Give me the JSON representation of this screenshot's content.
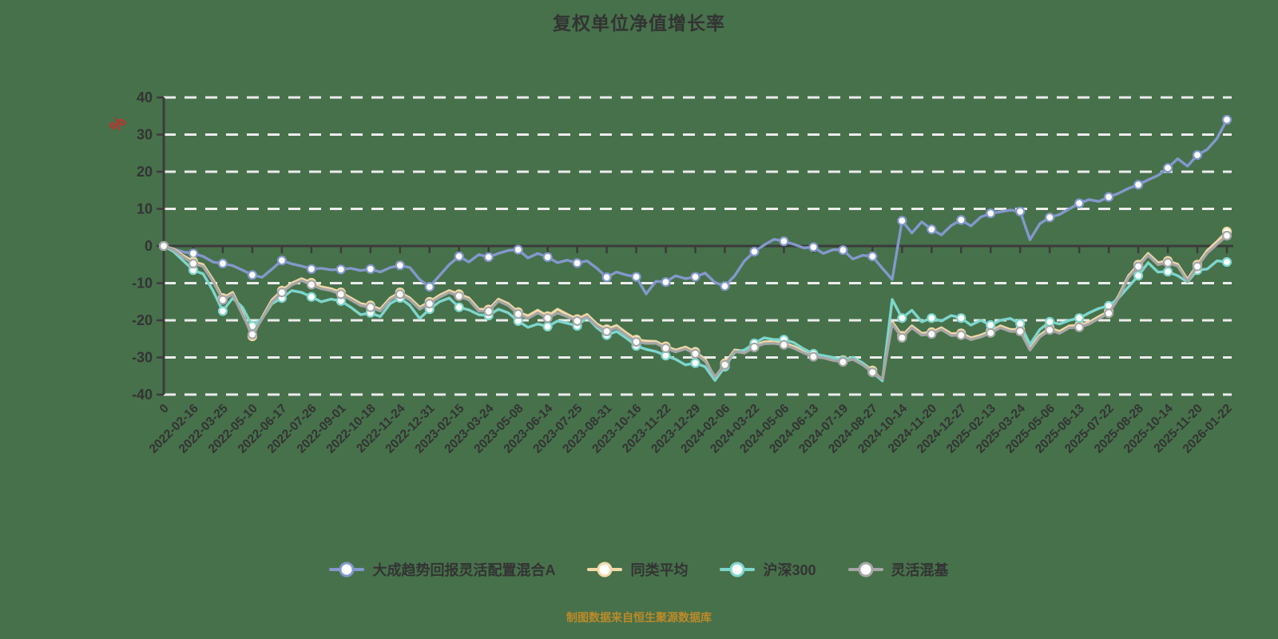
{
  "page": {
    "background_color": "#47714b"
  },
  "chart_data": {
    "type": "line",
    "title": "复权单位净值增长率",
    "source_note": "制图数据来自恒生聚源数据库",
    "y_unit_label": "%",
    "y_unit_color": "#cc2b2b",
    "grid": "horizontal dashed white lines",
    "legend_position": "bottom",
    "ylim": [
      -40,
      40
    ],
    "y_ticks": [
      40,
      30,
      20,
      10,
      0,
      -10,
      -20,
      -30,
      -40
    ],
    "x_tick_labels": [
      "0",
      "2022-02-16",
      "2022-03-25",
      "2022-05-10",
      "2022-06-17",
      "2022-07-26",
      "2022-09-01",
      "2022-10-18",
      "2022-11-24",
      "2022-12-31",
      "2023-02-15",
      "2023-03-24",
      "2023-05-08",
      "2023-06-14",
      "2023-07-25",
      "2023-08-31",
      "2023-10-16",
      "2023-11-22",
      "2023-12-29",
      "2024-02-06",
      "2024-03-22",
      "2024-05-06",
      "2024-06-13",
      "2024-07-19",
      "2024-08-27",
      "2024-10-14",
      "2024-11-20",
      "2024-12-27",
      "2025-02-13",
      "2025-03-24",
      "2025-05-06",
      "2025-06-13",
      "2025-07-22",
      "2025-08-28",
      "2025-10-14",
      "2025-11-20",
      "2026-01-22"
    ],
    "points_per_interval": 3,
    "marker_every": 3,
    "axis_color": "#3b3b3b",
    "gridline_color": "#ececec",
    "label_color": "#333333",
    "series": [
      {
        "name": "大成趋势回报灵活配置混合A",
        "color": "#8398cb",
        "values": [
          0,
          -0.8,
          -1.6,
          -2,
          -2.8,
          -4.3,
          -4.7,
          -5.3,
          -6.5,
          -7.8,
          -8.4,
          -6.2,
          -3.9,
          -4.8,
          -5.4,
          -6.2,
          -6,
          -6.4,
          -6.3,
          -6,
          -6.6,
          -6.2,
          -7,
          -5.8,
          -5.2,
          -5.8,
          -9,
          -11,
          -8,
          -5,
          -2.8,
          -4.3,
          -2.3,
          -3,
          -2,
          -1.2,
          -1,
          -3.2,
          -2,
          -3,
          -4.5,
          -3.8,
          -4.6,
          -4,
          -6,
          -8.4,
          -7,
          -7.8,
          -8.3,
          -12.9,
          -9.5,
          -9.7,
          -8,
          -8.8,
          -8.3,
          -7.3,
          -9.8,
          -10.8,
          -8,
          -4,
          -1.5,
          0.3,
          1.8,
          1.3,
          0.5,
          -0.5,
          -0.3,
          -2,
          -1,
          -1.1,
          -3.5,
          -2.5,
          -2.8,
          -6,
          -9,
          6.8,
          3.5,
          6.5,
          4.5,
          3,
          5.5,
          7,
          5.4,
          7.8,
          8.8,
          9.2,
          9.7,
          9.3,
          1.7,
          6,
          7.7,
          8.5,
          10,
          11.5,
          12.5,
          12,
          13.2,
          14.2,
          15.5,
          16.5,
          17.8,
          19,
          21,
          23.5,
          21.5,
          24.5,
          26,
          29,
          34
        ]
      },
      {
        "name": "同类平均",
        "color": "#f2d9a7",
        "values": [
          0,
          -0.8,
          -2.6,
          -4.2,
          -5,
          -9,
          -14,
          -12.5,
          -18,
          -24.3,
          -19.2,
          -14.5,
          -12,
          -10,
          -8.8,
          -9.9,
          -11,
          -11.5,
          -12.5,
          -14,
          -15.5,
          -16,
          -17,
          -14,
          -12.5,
          -14,
          -16.5,
          -15,
          -13.3,
          -12,
          -13,
          -14,
          -17,
          -17.1,
          -14.3,
          -15.5,
          -17.8,
          -18.8,
          -17.3,
          -18.9,
          -17,
          -18.4,
          -19.7,
          -18.4,
          -21,
          -22.4,
          -21.4,
          -23.4,
          -25.2,
          -25.6,
          -25.7,
          -27,
          -28,
          -27.2,
          -28.5,
          -30.5,
          -35.6,
          -31.6,
          -28,
          -28.3,
          -26.8,
          -25.8,
          -25.7,
          -26.1,
          -27,
          -28.3,
          -29.3,
          -29.6,
          -30.3,
          -30.7,
          -30,
          -31.5,
          -33.5,
          -36.1,
          -20.4,
          -24.2,
          -21.5,
          -23.5,
          -23.2,
          -22,
          -23.6,
          -23.5,
          -24.7,
          -24,
          -22.9,
          -21.5,
          -22.5,
          -22.5,
          -27.4,
          -24,
          -22.1,
          -23,
          -21.5,
          -21.4,
          -20.5,
          -19,
          -17.6,
          -13.5,
          -8,
          -5,
          -2,
          -4.5,
          -4,
          -4.9,
          -9,
          -5,
          -1.2,
          1.2,
          3.9
        ]
      },
      {
        "name": "沪深300",
        "color": "#7dd6cd",
        "values": [
          0,
          -1.5,
          -4,
          -6.5,
          -7.5,
          -12,
          -17.5,
          -14,
          -16.5,
          -21.5,
          -19.5,
          -15.5,
          -14,
          -12,
          -12.5,
          -13.7,
          -15,
          -14.3,
          -14.8,
          -16.5,
          -18.5,
          -18,
          -19,
          -15.5,
          -14,
          -16,
          -19.5,
          -17,
          -15,
          -14,
          -16.5,
          -17.2,
          -18.5,
          -18.7,
          -17,
          -18,
          -20.2,
          -21.9,
          -21,
          -21.7,
          -20.2,
          -20.8,
          -21.5,
          -19.2,
          -22,
          -24,
          -23,
          -24.8,
          -26.9,
          -27.8,
          -28.4,
          -29.5,
          -30.5,
          -32,
          -31.5,
          -32.5,
          -36.2,
          -32.5,
          -28.6,
          -28,
          -26.2,
          -24.7,
          -25.2,
          -25.2,
          -26,
          -27.7,
          -29,
          -29.5,
          -30,
          -30.9,
          -30,
          -31.5,
          -34,
          -36.3,
          -14.4,
          -19.4,
          -17.3,
          -20.4,
          -19.4,
          -20.2,
          -18.7,
          -19.4,
          -21.3,
          -20,
          -21.3,
          -20,
          -19.5,
          -20.9,
          -26.5,
          -22.5,
          -20.4,
          -21,
          -20,
          -19.4,
          -18,
          -16.8,
          -16.1,
          -14,
          -11,
          -8,
          -4.5,
          -7,
          -6.9,
          -8,
          -9.7,
          -6.5,
          -6.2,
          -4,
          -4.3
        ]
      },
      {
        "name": "灵活混基",
        "color": "#a6a6a6",
        "values": [
          0,
          -1,
          -3,
          -4.7,
          -5.5,
          -9.5,
          -14.5,
          -13,
          -18.5,
          -23.8,
          -19.6,
          -15,
          -12.5,
          -10.5,
          -9.3,
          -10.4,
          -11.5,
          -12,
          -13,
          -14.5,
          -16,
          -16.5,
          -17.5,
          -14.5,
          -13,
          -14.5,
          -17,
          -15.5,
          -13.8,
          -12.5,
          -13.5,
          -14.5,
          -17.5,
          -17.6,
          -14.8,
          -16,
          -18.3,
          -19.5,
          -18,
          -19.4,
          -18,
          -19,
          -20.2,
          -19,
          -21.5,
          -23,
          -22,
          -24,
          -25.8,
          -26.2,
          -26.2,
          -27.5,
          -28.5,
          -27.7,
          -29,
          -31,
          -35.2,
          -32,
          -28.4,
          -28.8,
          -27.3,
          -26.3,
          -26.2,
          -26.6,
          -27.5,
          -28.8,
          -29.8,
          -30.1,
          -30.8,
          -31.2,
          -30.5,
          -32,
          -34,
          -35.8,
          -20.9,
          -24.7,
          -22,
          -24,
          -23.7,
          -22.5,
          -24.1,
          -24,
          -25.2,
          -24.5,
          -23.4,
          -22,
          -23,
          -23,
          -28,
          -24.5,
          -22.6,
          -23.5,
          -22,
          -21.9,
          -21,
          -19.5,
          -18.1,
          -14,
          -8.5,
          -5.5,
          -2.5,
          -5,
          -4.5,
          -5.4,
          -9.5,
          -5.5,
          -1.9,
          0.5,
          2.8
        ]
      }
    ]
  }
}
